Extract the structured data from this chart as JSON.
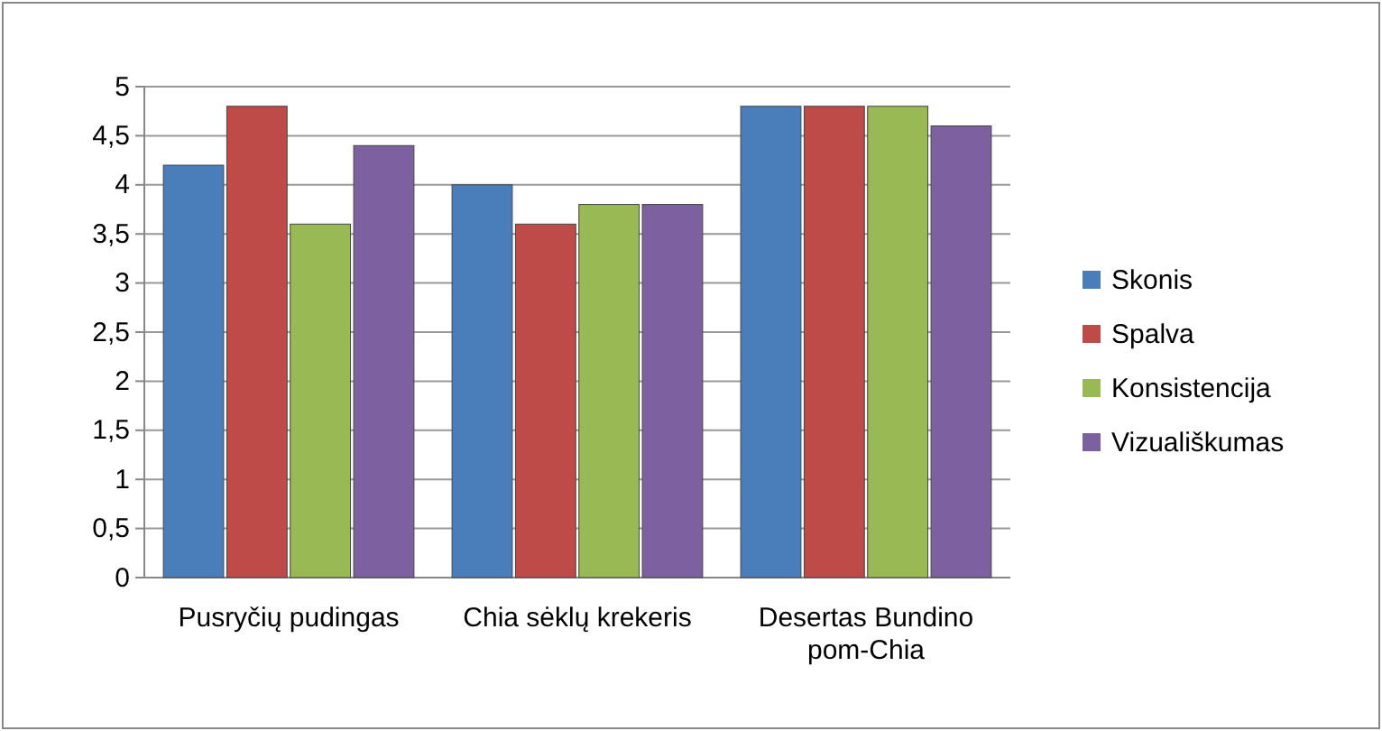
{
  "chart_data": {
    "type": "bar",
    "categories": [
      "Pusryčių pudingas",
      "Chia sėklų krekeris",
      "Desertas Bundino pom-Chia"
    ],
    "series": [
      {
        "name": "Skonis",
        "color": "#4a7ebb",
        "values": [
          4.2,
          4.0,
          4.8
        ]
      },
      {
        "name": "Spalva",
        "color": "#be4b48",
        "values": [
          4.8,
          3.6,
          4.8
        ]
      },
      {
        "name": "Konsistencija",
        "color": "#98b954",
        "values": [
          3.6,
          3.8,
          4.8
        ]
      },
      {
        "name": "Vizuališkumas",
        "color": "#7d60a0",
        "values": [
          4.4,
          3.8,
          4.6
        ]
      }
    ],
    "ylim": [
      0,
      5
    ],
    "yticks": [
      0,
      {
        "value": 0.5,
        "label": "0,5"
      },
      1,
      {
        "value": 1.5,
        "label": "1,5"
      },
      2,
      {
        "value": 2.5,
        "label": "2,5"
      },
      3,
      {
        "value": 3.5,
        "label": "3,5"
      },
      4,
      {
        "value": 4.5,
        "label": "4,5"
      },
      5
    ],
    "grid": "y",
    "legend": "right"
  }
}
